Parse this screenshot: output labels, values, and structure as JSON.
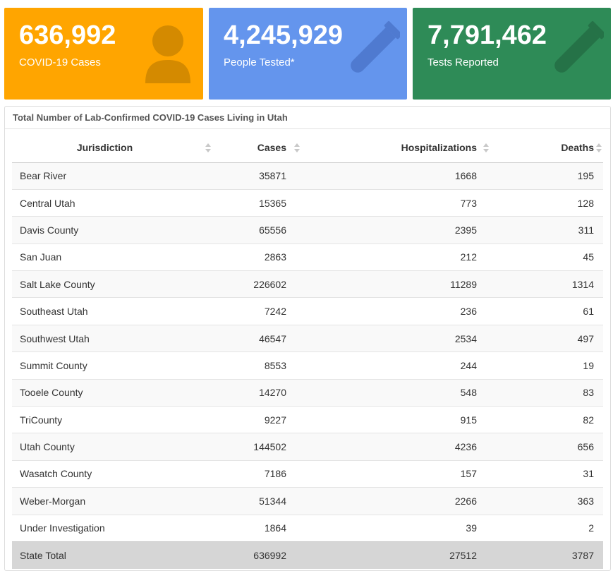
{
  "stats": [
    {
      "value": "636,992",
      "label": "COVID-19 Cases",
      "icon": "person-icon",
      "color": "#ffa500"
    },
    {
      "value": "4,245,929",
      "label": "People Tested*",
      "icon": "test-tube-icon",
      "color": "#6495ed"
    },
    {
      "value": "7,791,462",
      "label": "Tests Reported",
      "icon": "test-tube-icon",
      "color": "#2e8b57"
    }
  ],
  "panel": {
    "title": "Total Number of Lab-Confirmed COVID-19 Cases Living in Utah"
  },
  "table": {
    "headers": [
      "Jurisdiction",
      "Cases",
      "Hospitalizations",
      "Deaths"
    ],
    "rows": [
      [
        "Bear River",
        "35871",
        "1668",
        "195"
      ],
      [
        "Central Utah",
        "15365",
        "773",
        "128"
      ],
      [
        "Davis County",
        "65556",
        "2395",
        "311"
      ],
      [
        "San Juan",
        "2863",
        "212",
        "45"
      ],
      [
        "Salt Lake County",
        "226602",
        "11289",
        "1314"
      ],
      [
        "Southeast Utah",
        "7242",
        "236",
        "61"
      ],
      [
        "Southwest Utah",
        "46547",
        "2534",
        "497"
      ],
      [
        "Summit County",
        "8553",
        "244",
        "19"
      ],
      [
        "Tooele County",
        "14270",
        "548",
        "83"
      ],
      [
        "TriCounty",
        "9227",
        "915",
        "82"
      ],
      [
        "Utah County",
        "144502",
        "4236",
        "656"
      ],
      [
        "Wasatch County",
        "7186",
        "157",
        "31"
      ],
      [
        "Weber-Morgan",
        "51344",
        "2266",
        "363"
      ],
      [
        "Under Investigation",
        "1864",
        "39",
        "2"
      ]
    ],
    "total": [
      "State Total",
      "636992",
      "27512",
      "3787"
    ]
  }
}
